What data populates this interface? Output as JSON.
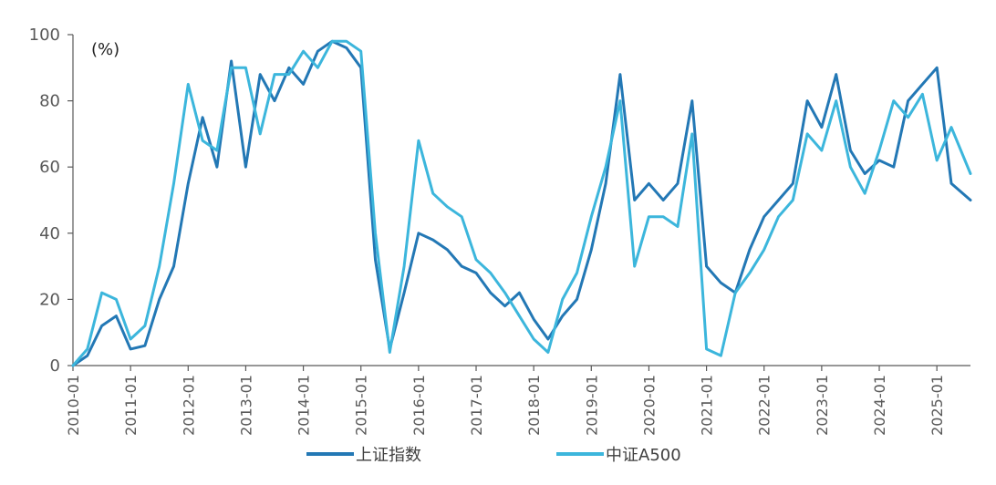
{
  "chart_data": {
    "type": "line",
    "unit_label": "(%)",
    "ylim": [
      0,
      100
    ],
    "yticks": [
      "0",
      "20",
      "40",
      "60",
      "80",
      "100"
    ],
    "xlim": [
      "2010-01",
      "2025-08"
    ],
    "xticks": [
      "2010-01",
      "2011-01",
      "2012-01",
      "2013-01",
      "2014-01",
      "2015-01",
      "2016-01",
      "2017-01",
      "2018-01",
      "2019-01",
      "2020-01",
      "2021-01",
      "2022-01",
      "2023-01",
      "2024-01",
      "2025-01"
    ],
    "legend_position": "bottom",
    "grid": false,
    "series": [
      {
        "name": "上证指数",
        "color": "#2378b5",
        "x": [
          "2010-01",
          "2010-04",
          "2010-07",
          "2010-10",
          "2011-01",
          "2011-04",
          "2011-07",
          "2011-10",
          "2012-01",
          "2012-04",
          "2012-07",
          "2012-10",
          "2013-01",
          "2013-04",
          "2013-07",
          "2013-10",
          "2014-01",
          "2014-04",
          "2014-07",
          "2014-10",
          "2015-01",
          "2015-04",
          "2015-07",
          "2015-10",
          "2016-01",
          "2016-04",
          "2016-07",
          "2016-10",
          "2017-01",
          "2017-04",
          "2017-07",
          "2017-10",
          "2018-01",
          "2018-04",
          "2018-07",
          "2018-10",
          "2019-01",
          "2019-04",
          "2019-07",
          "2019-10",
          "2020-01",
          "2020-04",
          "2020-07",
          "2020-10",
          "2021-01",
          "2021-04",
          "2021-07",
          "2021-10",
          "2022-01",
          "2022-04",
          "2022-07",
          "2022-10",
          "2023-01",
          "2023-04",
          "2023-07",
          "2023-10",
          "2024-01",
          "2024-04",
          "2024-07",
          "2024-10",
          "2025-01",
          "2025-04",
          "2025-08"
        ],
        "values": [
          0,
          3,
          12,
          15,
          5,
          6,
          20,
          30,
          55,
          75,
          60,
          92,
          60,
          88,
          80,
          90,
          85,
          95,
          98,
          96,
          90,
          32,
          5,
          22,
          40,
          38,
          35,
          30,
          28,
          22,
          18,
          22,
          14,
          8,
          15,
          20,
          35,
          55,
          88,
          50,
          55,
          50,
          55,
          80,
          30,
          25,
          22,
          35,
          45,
          50,
          55,
          80,
          72,
          88,
          65,
          58,
          62,
          60,
          80,
          85,
          90,
          55,
          50
        ]
      },
      {
        "name": "中证A500",
        "color": "#3cb6dc",
        "x": [
          "2010-01",
          "2010-04",
          "2010-07",
          "2010-10",
          "2011-01",
          "2011-04",
          "2011-07",
          "2011-10",
          "2012-01",
          "2012-04",
          "2012-07",
          "2012-10",
          "2013-01",
          "2013-04",
          "2013-07",
          "2013-10",
          "2014-01",
          "2014-04",
          "2014-07",
          "2014-10",
          "2015-01",
          "2015-04",
          "2015-07",
          "2015-10",
          "2016-01",
          "2016-04",
          "2016-07",
          "2016-10",
          "2017-01",
          "2017-04",
          "2017-07",
          "2017-10",
          "2018-01",
          "2018-04",
          "2018-07",
          "2018-10",
          "2019-01",
          "2019-04",
          "2019-07",
          "2019-10",
          "2020-01",
          "2020-04",
          "2020-07",
          "2020-10",
          "2021-01",
          "2021-04",
          "2021-07",
          "2021-10",
          "2022-01",
          "2022-04",
          "2022-07",
          "2022-10",
          "2023-01",
          "2023-04",
          "2023-07",
          "2023-10",
          "2024-01",
          "2024-04",
          "2024-07",
          "2024-10",
          "2025-01",
          "2025-04",
          "2025-08"
        ],
        "values": [
          0,
          5,
          22,
          20,
          8,
          12,
          30,
          55,
          85,
          68,
          65,
          90,
          90,
          70,
          88,
          88,
          95,
          90,
          98,
          98,
          95,
          40,
          4,
          30,
          68,
          52,
          48,
          45,
          32,
          28,
          22,
          15,
          8,
          4,
          20,
          28,
          45,
          60,
          80,
          30,
          45,
          45,
          42,
          70,
          5,
          3,
          22,
          28,
          35,
          45,
          50,
          70,
          65,
          80,
          60,
          52,
          65,
          80,
          75,
          82,
          62,
          72,
          58
        ]
      }
    ]
  }
}
